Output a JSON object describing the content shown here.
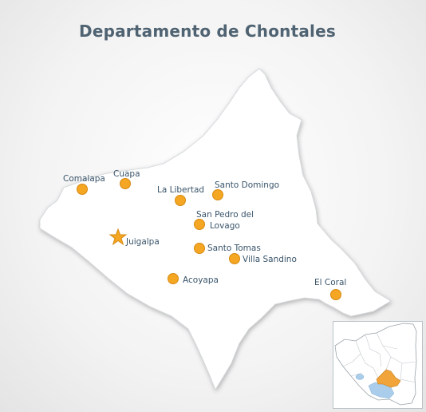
{
  "title": "Departamento de Chontales",
  "colors": {
    "department_fill": "#ffffff",
    "marker": "#f5a623",
    "marker_stroke": "#d68a10",
    "label": "#39546a",
    "title": "#4f6372",
    "inset_highlight": "#f0a43a",
    "inset_lake": "#a9cdea"
  },
  "places": [
    {
      "id": "comalapa",
      "name": "Comalapa",
      "marker": "circle"
    },
    {
      "id": "cuapa",
      "name": "Cuapa",
      "marker": "circle"
    },
    {
      "id": "la-libertad",
      "name": "La Libertad",
      "marker": "circle"
    },
    {
      "id": "santo-domingo",
      "name": "Santo Domingo",
      "marker": "circle"
    },
    {
      "id": "san-pedro-del-lovago",
      "name_line1": "San Pedro del",
      "name_line2": "Lovago",
      "marker": "circle"
    },
    {
      "id": "juigalpa",
      "name": "Juigalpa",
      "marker": "star"
    },
    {
      "id": "santo-tomas",
      "name": "Santo Tomas",
      "marker": "circle"
    },
    {
      "id": "villa-sandino",
      "name": "Villa Sandino",
      "marker": "circle"
    },
    {
      "id": "acoyapa",
      "name": "Acoyapa",
      "marker": "circle"
    },
    {
      "id": "el-coral",
      "name": "El Coral",
      "marker": "circle"
    }
  ]
}
